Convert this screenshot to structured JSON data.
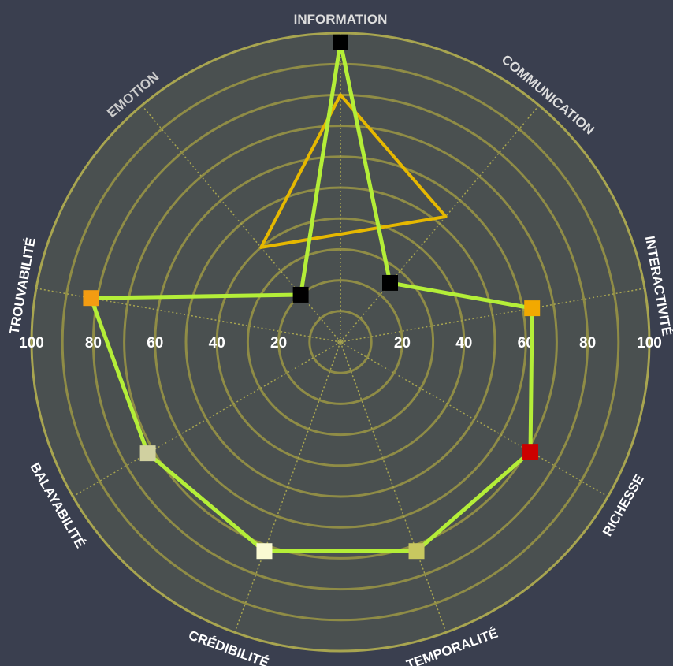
{
  "chart_data": {
    "type": "radar",
    "axes": [
      {
        "label": "INFORMATION",
        "color": "#dddddd"
      },
      {
        "label": "COMMUNICATION",
        "color": "#dddddd"
      },
      {
        "label": "INTERACTIVITÉ",
        "color": "#ffffff"
      },
      {
        "label": "RICHESSE",
        "color": "#ffffff"
      },
      {
        "label": "TEMPORALITÉ",
        "color": "#ffffff"
      },
      {
        "label": "CRÉDIBILITÉ",
        "color": "#ffffff"
      },
      {
        "label": "BALAYABILITÉ",
        "color": "#ffffff"
      },
      {
        "label": "TROUVABILITÉ",
        "color": "#ffffff"
      },
      {
        "label": "EMOTION",
        "color": "#cccccc"
      }
    ],
    "radial_range": [
      0,
      100
    ],
    "tick_labels": [
      "20",
      "40",
      "60",
      "80",
      "100"
    ],
    "series": [
      {
        "color": "#e6b800",
        "axis_indices": [
          0,
          1,
          8
        ],
        "values": [
          80,
          53,
          40
        ],
        "markers": false
      },
      {
        "color": "#b4ee38",
        "axis_indices": [
          0,
          1,
          2,
          3,
          4,
          5,
          6,
          7,
          8
        ],
        "values": [
          97,
          25,
          63,
          71,
          72,
          72,
          72,
          82,
          20
        ],
        "markers": true,
        "marker_colors": [
          "#000000",
          "#000000",
          "#f2a900",
          "#cc0000",
          "#c8c860",
          "#fafad2",
          "#d0d0a0",
          "#f39c12",
          "#000000"
        ]
      }
    ],
    "colors": {
      "background": "#3a3f4f",
      "plot_background": "#4a5050",
      "rings": "#8f8c46",
      "outer_ring": "#a8a550",
      "spokes": "#a8a550"
    }
  }
}
